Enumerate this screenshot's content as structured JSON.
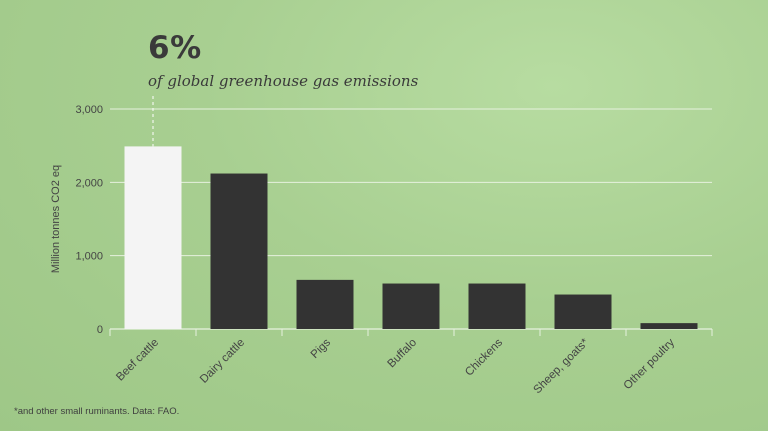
{
  "header": {
    "headline": "6%",
    "subtitle": "of global greenhouse gas emissions"
  },
  "footnote": "*and other small ruminants. Data: FAO.",
  "colors": {
    "background": "#a6cd8f",
    "highlight_bar": "#f4f4f4",
    "bar": "#333333",
    "grid": "#e6f1de"
  },
  "chart_data": {
    "type": "bar",
    "title": "6%",
    "subtitle": "of global greenhouse gas emissions",
    "categories": [
      "Beef cattle",
      "Dairy cattle",
      "Pigs",
      "Buffalo",
      "Chickens",
      "Sheep, goats*",
      "Other poultry"
    ],
    "values": [
      2490,
      2120,
      670,
      620,
      620,
      470,
      80
    ],
    "highlight_index": 0,
    "xlabel": "",
    "ylabel": "Million tonnes CO2 eq",
    "ylim": [
      0,
      3000
    ],
    "yticks": [
      0,
      1000,
      2000,
      3000
    ],
    "ytick_labels": [
      "0",
      "1,000",
      "2,000",
      "3,000"
    ],
    "grid": true
  }
}
